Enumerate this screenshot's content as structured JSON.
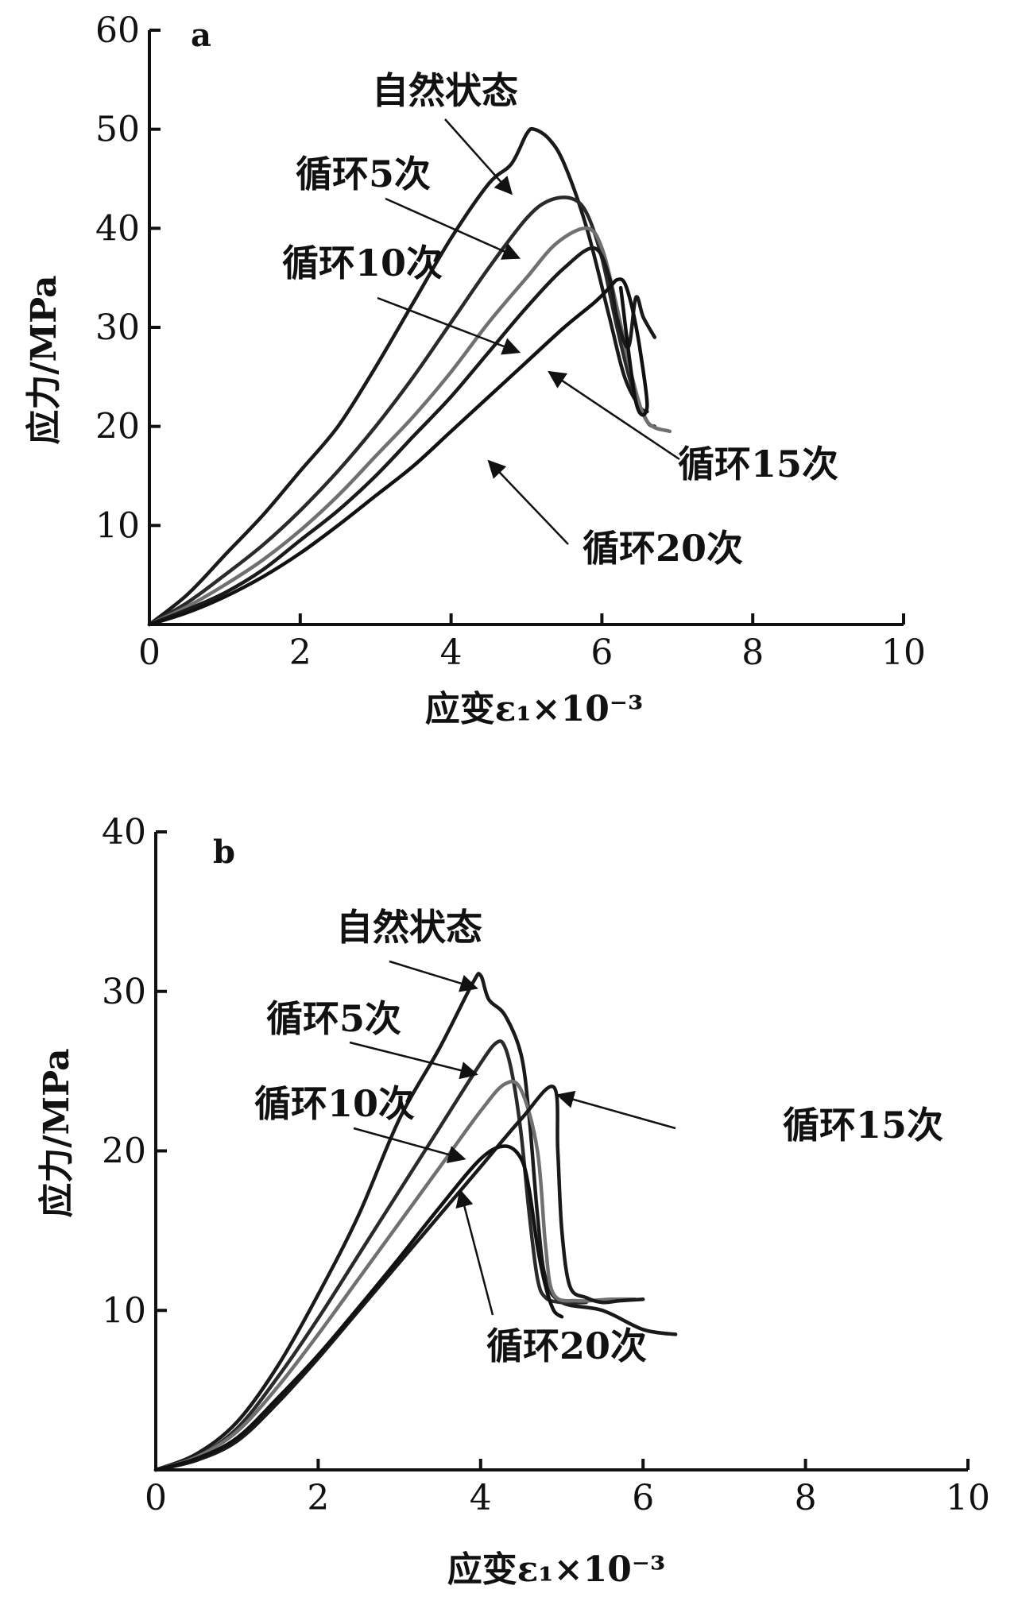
{
  "chart_data": [
    {
      "type": "line",
      "panel_label": "a",
      "xlabel": "应变ε₁×10⁻³",
      "ylabel": "应力/MPa",
      "xlim": [
        0,
        10
      ],
      "ylim": [
        0,
        60
      ],
      "x_ticks": [
        "0",
        "2",
        "4",
        "6",
        "8",
        "10"
      ],
      "y_ticks": [
        "10",
        "20",
        "30",
        "40",
        "50",
        "60"
      ],
      "grid": false,
      "series": [
        {
          "name": "自然状态",
          "color": "#1a1a1a",
          "x": [
            0,
            0.5,
            1,
            1.5,
            2,
            2.5,
            3,
            3.5,
            4,
            4.5,
            4.8,
            5,
            5.1,
            5.3,
            5.5,
            5.8,
            6.1,
            6.3,
            6.5,
            6.6
          ],
          "y": [
            0,
            3,
            7,
            11,
            15.5,
            20,
            26,
            32.5,
            39,
            44.5,
            46.5,
            49.5,
            50,
            49,
            46.5,
            40,
            31,
            25,
            22,
            21.5
          ]
        },
        {
          "name": "循环5次",
          "color": "#2a2a2a",
          "x": [
            0,
            0.5,
            1,
            1.5,
            2,
            2.5,
            3,
            3.5,
            4,
            4.5,
            5,
            5.3,
            5.6,
            5.8,
            6,
            6.2,
            6.4,
            6.6,
            6.7
          ],
          "y": [
            0,
            2.2,
            5,
            8,
            11.5,
            15.5,
            20,
            25,
            30.5,
            36,
            41,
            42.8,
            43,
            41.5,
            37,
            30,
            24,
            20.5,
            20
          ]
        },
        {
          "name": "循环10次",
          "color": "#707070",
          "x": [
            0,
            0.5,
            1,
            1.5,
            2,
            2.5,
            3,
            3.5,
            4,
            4.5,
            5,
            5.4,
            5.8,
            6,
            6.2,
            6.4,
            6.6,
            6.9
          ],
          "y": [
            0,
            1.8,
            4,
            6.5,
            9.5,
            13,
            17,
            21,
            25.5,
            30.5,
            35,
            38.5,
            40,
            38,
            32,
            25,
            20.5,
            19.5
          ]
        },
        {
          "name": "循环15次",
          "color": "#1a1a1a",
          "x": [
            0,
            0.5,
            1,
            1.5,
            2,
            2.5,
            3,
            3.5,
            4,
            4.5,
            5,
            5.5,
            5.9,
            6.1,
            6.2,
            6.35,
            6.45,
            6.55,
            6.7
          ],
          "y": [
            0,
            1.5,
            3.2,
            5.5,
            8.5,
            11.5,
            15,
            19,
            23,
            27.5,
            32,
            36,
            38,
            35,
            31,
            28,
            33,
            31,
            29
          ]
        },
        {
          "name": "循环20次",
          "color": "#111111",
          "x": [
            0,
            0.5,
            1,
            1.5,
            2,
            2.5,
            3,
            3.5,
            4,
            4.5,
            5,
            5.5,
            5.9,
            6.1,
            6.2,
            6.3,
            6.4,
            6.5,
            6.6,
            6.45,
            6.25
          ],
          "y": [
            0,
            1.2,
            2.8,
            4.8,
            7.2,
            10,
            13,
            16,
            19.5,
            23,
            26.5,
            30,
            32.5,
            34,
            34.8,
            34.5,
            32,
            28,
            22,
            22.5,
            34
          ]
        }
      ],
      "annotations": [
        {
          "text": "自然状态",
          "target_x": 4.8,
          "target_y": 43.5
        },
        {
          "text": "循环5次",
          "target_x": 4.9,
          "target_y": 37
        },
        {
          "text": "循环10次",
          "target_x": 4.9,
          "target_y": 27.5
        },
        {
          "text": "循环15次",
          "target_x": 5.3,
          "target_y": 25.5
        },
        {
          "text": "循环20次",
          "target_x": 4.5,
          "target_y": 16.5
        }
      ]
    },
    {
      "type": "line",
      "panel_label": "b",
      "xlabel": "应变ε₁×10⁻³",
      "ylabel": "应力/MPa",
      "xlim": [
        0,
        10
      ],
      "ylim": [
        0,
        40
      ],
      "x_ticks": [
        "0",
        "2",
        "4",
        "6",
        "8",
        "10"
      ],
      "y_ticks": [
        "10",
        "20",
        "30",
        "40"
      ],
      "grid": false,
      "series": [
        {
          "name": "自然状态",
          "color": "#1a1a1a",
          "x": [
            0,
            0.5,
            1,
            1.5,
            2,
            2.5,
            3,
            3.5,
            3.9,
            4,
            4.1,
            4.3,
            4.5,
            4.6,
            4.7,
            4.8,
            5,
            5.5,
            6,
            6.4
          ],
          "y": [
            0,
            1,
            3,
            6.5,
            11,
            16,
            22,
            26.5,
            30.5,
            31,
            29.5,
            28.5,
            26,
            22,
            16,
            12,
            10.5,
            10,
            8.8,
            8.5
          ]
        },
        {
          "name": "循环5次",
          "color": "#2a2a2a",
          "x": [
            0,
            0.5,
            1,
            1.5,
            2,
            2.5,
            3,
            3.5,
            4,
            4.2,
            4.3,
            4.4,
            4.5,
            4.6,
            4.7,
            4.8,
            5,
            5.3
          ],
          "y": [
            0,
            0.8,
            2.6,
            5.8,
            9.5,
            13.5,
            17.5,
            21.5,
            25.5,
            26.8,
            26.5,
            24.5,
            21,
            16,
            12,
            10.8,
            10.5,
            10.5
          ]
        },
        {
          "name": "循环10次",
          "color": "#707070",
          "x": [
            0,
            0.5,
            1,
            1.5,
            2,
            2.5,
            3,
            3.5,
            4,
            4.3,
            4.5,
            4.7,
            4.8,
            4.9,
            5.2,
            5.6,
            5.9
          ],
          "y": [
            0,
            0.8,
            2.4,
            5.2,
            8.5,
            12,
            15.5,
            19,
            22.5,
            24.2,
            23.8,
            20,
            14,
            11,
            10.6,
            10.7,
            10.7
          ]
        },
        {
          "name": "循环15次",
          "color": "#1a1a1a",
          "x": [
            0,
            0.5,
            1,
            1.5,
            2,
            2.5,
            3,
            3.5,
            4,
            4.5,
            4.9,
            4.95,
            5,
            5.1,
            5.3,
            5.5,
            5.7,
            6.0
          ],
          "y": [
            0,
            0.6,
            1.8,
            4.2,
            7,
            10,
            13,
            16,
            19,
            22,
            24,
            20,
            15,
            11.5,
            10.8,
            10.5,
            10.6,
            10.7
          ]
        },
        {
          "name": "循环20次",
          "color": "#111111",
          "x": [
            0,
            0.5,
            1,
            1.5,
            2,
            2.5,
            3,
            3.5,
            4,
            4.3,
            4.5,
            4.6,
            4.7,
            4.8,
            4.9,
            5.0
          ],
          "y": [
            0,
            0.7,
            2,
            4.5,
            7.2,
            10.2,
            13.3,
            16.5,
            19.5,
            20.3,
            19.5,
            17.5,
            14,
            11.5,
            10,
            9.6
          ]
        }
      ],
      "annotations": [
        {
          "text": "自然状态",
          "target_x": 3.95,
          "target_y": 30.2
        },
        {
          "text": "循环5次",
          "target_x": 3.95,
          "target_y": 24.8
        },
        {
          "text": "循环10次",
          "target_x": 3.8,
          "target_y": 19.5
        },
        {
          "text": "循环15次",
          "target_x": 4.95,
          "target_y": 23.5
        },
        {
          "text": "循环20次",
          "target_x": 3.75,
          "target_y": 17.5
        }
      ]
    }
  ]
}
